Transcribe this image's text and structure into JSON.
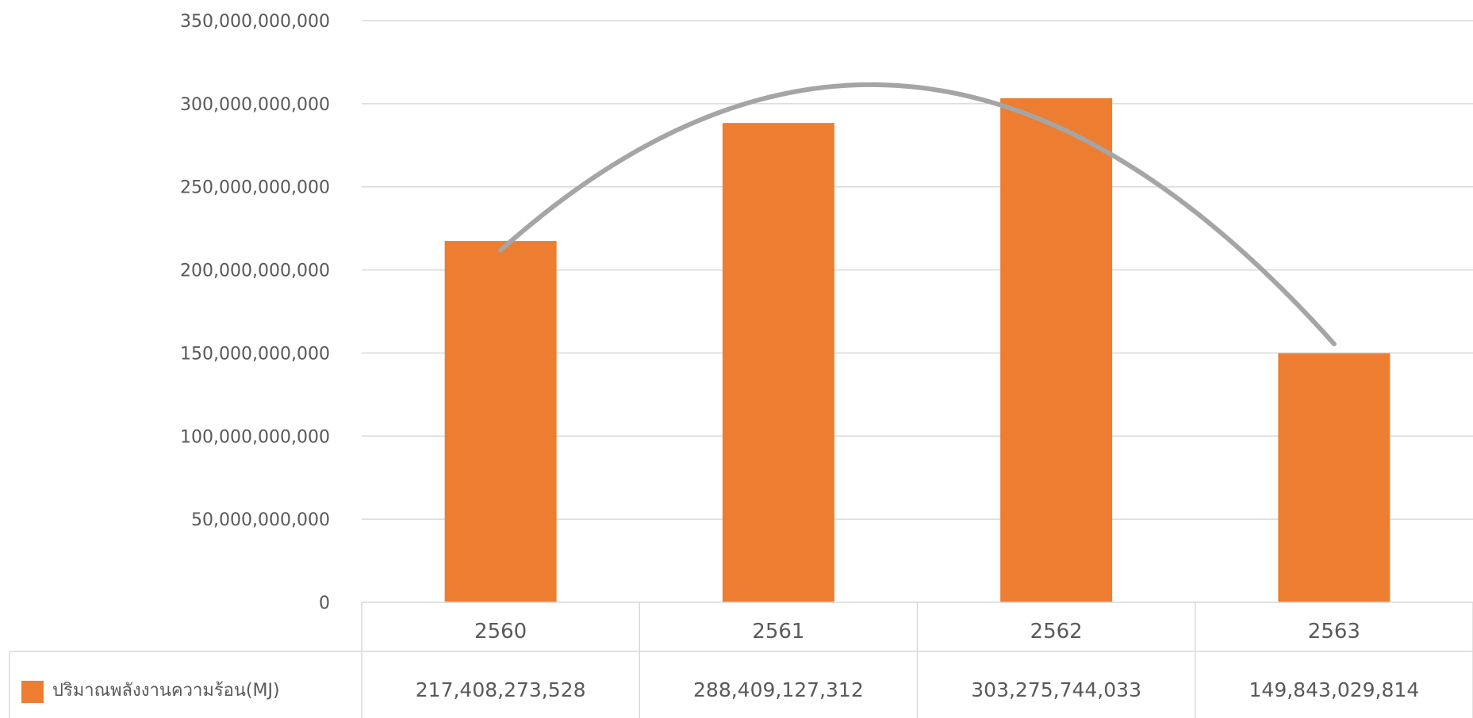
{
  "chart_data": {
    "type": "bar",
    "categories": [
      "2560",
      "2561",
      "2562",
      "2563"
    ],
    "series": [
      {
        "name": "ปริมาณพลังงานความร้อน(MJ)",
        "values": [
          217408273528,
          288409127312,
          303275744033,
          149843029814
        ],
        "table_labels": [
          "217,408,273,528",
          "288,409,127,312",
          "303,275,744,033",
          "149,843,029,814"
        ],
        "color": "#ED7D31"
      }
    ],
    "trendline": {
      "type": "polynomial",
      "order": 2,
      "color": "#A5A5A5"
    },
    "ylim": [
      0,
      350000000000
    ],
    "yticks": [
      {
        "value": 0,
        "label": "0"
      },
      {
        "value": 50000000000,
        "label": "50,000,000,000"
      },
      {
        "value": 100000000000,
        "label": "100,000,000,000"
      },
      {
        "value": 150000000000,
        "label": "150,000,000,000"
      },
      {
        "value": 200000000000,
        "label": "200,000,000,000"
      },
      {
        "value": 250000000000,
        "label": "250,000,000,000"
      },
      {
        "value": 300000000000,
        "label": "300,000,000,000"
      },
      {
        "value": 350000000000,
        "label": "350,000,000,000"
      }
    ],
    "grid": true,
    "data_table": true,
    "legend_placement": "data-table-left",
    "gridline_color": "#D9D9D9",
    "text_color": "#595959"
  }
}
